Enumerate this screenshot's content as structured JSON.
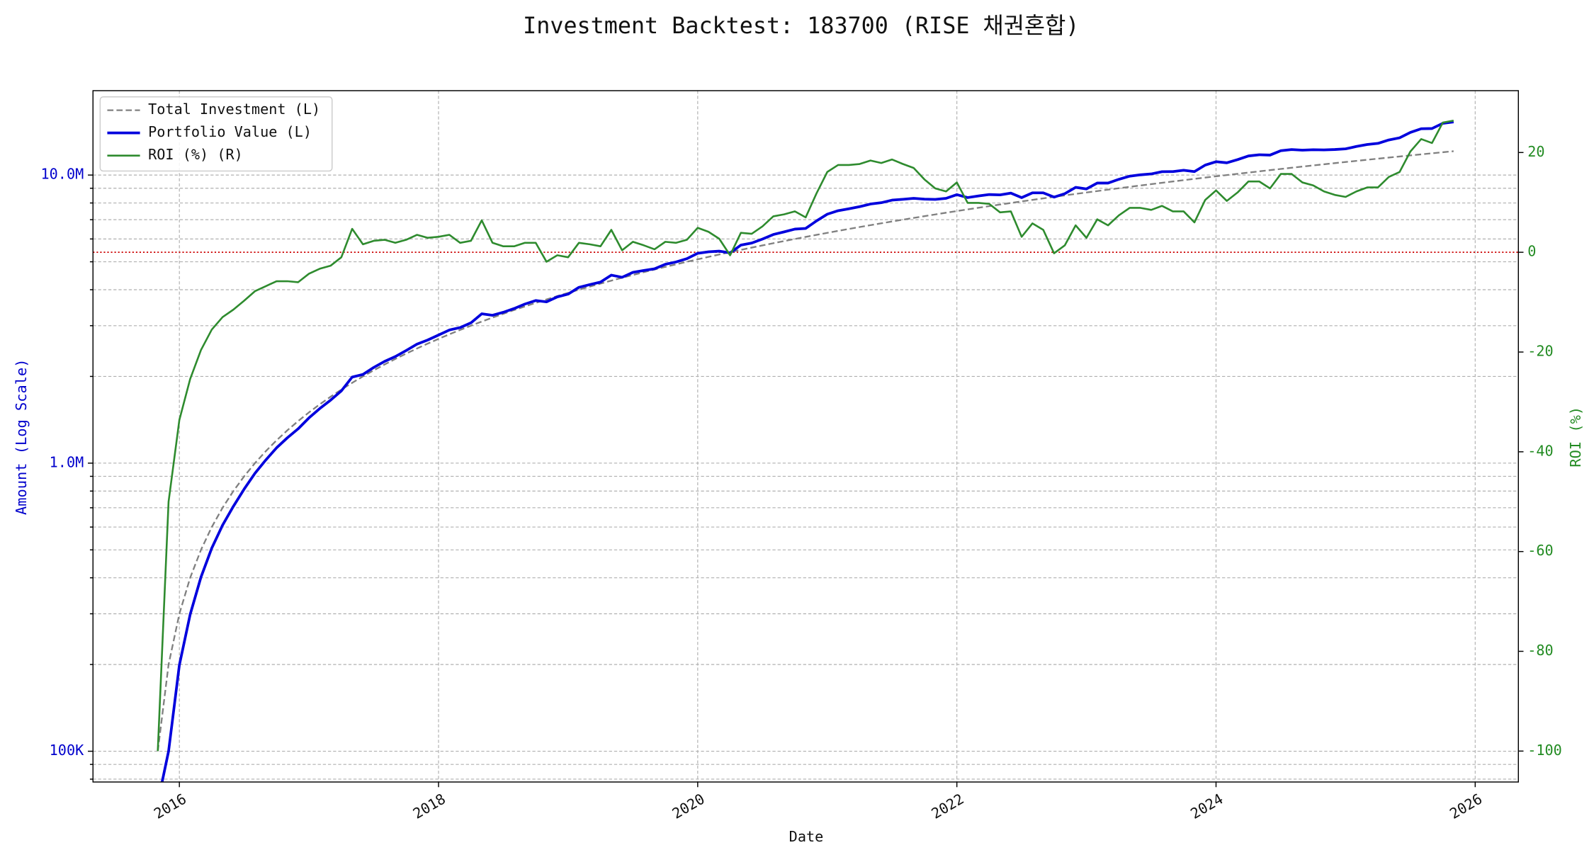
{
  "chart_data": {
    "type": "line",
    "title": "Investment Backtest: 183700 (RISE 채권혼합)",
    "xlabel": "Date",
    "ylabel": "Amount (Log Scale)",
    "y2label": "ROI (%)",
    "log_y": true,
    "grid": true,
    "legend": "upper left",
    "x": [
      "2015-11",
      "2015-12",
      "2016-01",
      "2016-02",
      "2016-03",
      "2016-04",
      "2016-05",
      "2016-06",
      "2016-07",
      "2016-08",
      "2016-09",
      "2016-10",
      "2016-11",
      "2016-12",
      "2017-01",
      "2017-02",
      "2017-03",
      "2017-04",
      "2017-05",
      "2017-06",
      "2017-07",
      "2017-08",
      "2017-09",
      "2017-10",
      "2017-11",
      "2017-12",
      "2018-01",
      "2018-02",
      "2018-03",
      "2018-04",
      "2018-05",
      "2018-06",
      "2018-07",
      "2018-08",
      "2018-09",
      "2018-10",
      "2018-11",
      "2018-12",
      "2019-01",
      "2019-02",
      "2019-03",
      "2019-04",
      "2019-05",
      "2019-06",
      "2019-07",
      "2019-08",
      "2019-09",
      "2019-10",
      "2019-11",
      "2019-12",
      "2020-01",
      "2020-02",
      "2020-03",
      "2020-04",
      "2020-05",
      "2020-06",
      "2020-07",
      "2020-08",
      "2020-09",
      "2020-10",
      "2020-11",
      "2020-12",
      "2021-01",
      "2021-02",
      "2021-03",
      "2021-04",
      "2021-05",
      "2021-06",
      "2021-07",
      "2021-08",
      "2021-09",
      "2021-10",
      "2021-11",
      "2021-12",
      "2022-01",
      "2022-02",
      "2022-03",
      "2022-04",
      "2022-05",
      "2022-06",
      "2022-07",
      "2022-08",
      "2022-09",
      "2022-10",
      "2022-11",
      "2022-12",
      "2023-01",
      "2023-02",
      "2023-03",
      "2023-04",
      "2023-05",
      "2023-06",
      "2023-07",
      "2023-08",
      "2023-09",
      "2023-10",
      "2023-11",
      "2023-12",
      "2024-01",
      "2024-02",
      "2024-03",
      "2024-04",
      "2024-05",
      "2024-06",
      "2024-07",
      "2024-08",
      "2024-09",
      "2024-10",
      "2024-11",
      "2024-12",
      "2025-01",
      "2025-02",
      "2025-03",
      "2025-04",
      "2025-05",
      "2025-06",
      "2025-07",
      "2025-08",
      "2025-09",
      "2025-10",
      "2025-11"
    ],
    "series": [
      {
        "name": "Total Investment (L)",
        "color": "#808080",
        "dash": true,
        "width": 1.6,
        "values": [
          100000,
          200000,
          300000,
          400000,
          500000,
          600000,
          700000,
          800000,
          900000,
          1000000,
          1100000,
          1200000,
          1300000,
          1400000,
          1500000,
          1600000,
          1700000,
          1800000,
          1900000,
          2000000,
          2100000,
          2200000,
          2300000,
          2400000,
          2500000,
          2600000,
          2700000,
          2800000,
          2900000,
          3000000,
          3100000,
          3200000,
          3300000,
          3400000,
          3500000,
          3600000,
          3700000,
          3800000,
          3900000,
          4000000,
          4100000,
          4200000,
          4300000,
          4400000,
          4500000,
          4600000,
          4700000,
          4800000,
          4900000,
          5000000,
          5100000,
          5200000,
          5300000,
          5400000,
          5500000,
          5600000,
          5700000,
          5800000,
          5900000,
          6000000,
          6100000,
          6200000,
          6300000,
          6400000,
          6500000,
          6600000,
          6700000,
          6800000,
          6900000,
          7000000,
          7100000,
          7200000,
          7300000,
          7400000,
          7500000,
          7600000,
          7700000,
          7800000,
          7900000,
          8000000,
          8100000,
          8200000,
          8300000,
          8400000,
          8500000,
          8600000,
          8700000,
          8800000,
          8900000,
          9000000,
          9100000,
          9200000,
          9300000,
          9400000,
          9500000,
          9600000,
          9700000,
          9800000,
          9900000,
          10000000,
          10100000,
          10200000,
          10300000,
          10400000,
          10500000,
          10600000,
          10700000,
          10800000,
          10900000,
          11000000,
          11100000,
          11200000,
          11300000,
          11400000,
          11500000,
          11600000,
          11700000,
          11800000,
          11900000,
          12000000,
          12100000
        ]
      },
      {
        "name": "Portfolio Value (L)",
        "color": "#0000dd",
        "width": 2.6,
        "values": [
          0,
          100000,
          199200,
          298400,
          402000,
          507000,
          609000,
          708000,
          812700,
          922000,
          1025200,
          1130400,
          1224600,
          1316000,
          1435500,
          1547200,
          1654100,
          1782000,
          1989300,
          2032000,
          2148300,
          2255000,
          2343700,
          2460000,
          2587500,
          2675400,
          2783700,
          2898000,
          2955100,
          3069000,
          3298400,
          3260800,
          3339600,
          3440800,
          3566500,
          3668400,
          3629700,
          3777200,
          3861000,
          4076000,
          4165600,
          4250400,
          4493500,
          4417600,
          4594500,
          4664400,
          4728200,
          4900800,
          4993100,
          5125000,
          5349900,
          5413200,
          5443100,
          5367600,
          5714500,
          5807200,
          5996400,
          6217600,
          6348400,
          6492000,
          6527000,
          6931600,
          7314300,
          7520000,
          7637500,
          7768200,
          7932800,
          8017200,
          8183400,
          8239000,
          8299900,
          8251200,
          8234400,
          8302800,
          8550000,
          8352400,
          8462300,
          8556600,
          8532000,
          8656000,
          8351100,
          8675600,
          8673500,
          8383200,
          8619000,
          9064400,
          8952300,
          9380800,
          9380600,
          9666000,
          9909900,
          10018800,
          10090500,
          10274200,
          10279000,
          10387200,
          10282000,
          10829000,
          11127600,
          11030000,
          11312000,
          11648400,
          11762600,
          11731200,
          12148500,
          12264200,
          12198000,
          12247200,
          12229800,
          12265000,
          12332100,
          12566400,
          12769000,
          12882000,
          13236500,
          13467600,
          14063400,
          14478600,
          14506100,
          15120000,
          15294400
        ]
      },
      {
        "name": "ROI (%) (R)",
        "color": "#2e8b2e",
        "axis": "y2",
        "width": 1.8,
        "values": [
          -100,
          -50,
          -33.6,
          -25.4,
          -19.6,
          -15.5,
          -13,
          -11.5,
          -9.7,
          -7.8,
          -6.8,
          -5.8,
          -5.8,
          -6,
          -4.3,
          -3.3,
          -2.7,
          -1,
          4.7,
          1.6,
          2.3,
          2.5,
          1.9,
          2.5,
          3.5,
          2.9,
          3.1,
          3.5,
          1.9,
          2.3,
          6.4,
          1.9,
          1.2,
          1.2,
          1.9,
          1.9,
          -1.9,
          -0.6,
          -1,
          1.9,
          1.6,
          1.2,
          4.5,
          0.4,
          2.1,
          1.4,
          0.6,
          2.1,
          1.9,
          2.5,
          4.9,
          4.1,
          2.7,
          -0.6,
          3.9,
          3.7,
          5.2,
          7.2,
          7.6,
          8.2,
          7,
          11.8,
          16.1,
          17.5,
          17.5,
          17.7,
          18.4,
          17.9,
          18.6,
          17.7,
          16.9,
          14.6,
          12.8,
          12.2,
          14,
          9.9,
          9.9,
          9.7,
          8,
          8.2,
          3.1,
          5.8,
          4.5,
          -0.2,
          1.4,
          5.4,
          2.9,
          6.6,
          5.4,
          7.4,
          8.9,
          8.9,
          8.5,
          9.3,
          8.2,
          8.2,
          6,
          10.5,
          12.4,
          10.3,
          12,
          14.2,
          14.2,
          12.8,
          15.7,
          15.7,
          14,
          13.4,
          12.2,
          11.5,
          11.1,
          12.2,
          13,
          13,
          15.1,
          16.1,
          20.2,
          22.7,
          21.9,
          26,
          26.4
        ]
      }
    ],
    "xlim": [
      "2015-05",
      "2026-05"
    ],
    "xticks": [
      {
        "value": "2016-01",
        "label": "2016"
      },
      {
        "value": "2018-01",
        "label": "2018"
      },
      {
        "value": "2020-01",
        "label": "2020"
      },
      {
        "value": "2022-01",
        "label": "2022"
      },
      {
        "value": "2024-01",
        "label": "2024"
      },
      {
        "value": "2026-01",
        "label": "2026"
      }
    ],
    "ylim": [
      78200,
      19630000
    ],
    "yticks": [
      {
        "value": 100000,
        "label": "100K"
      },
      {
        "value": 1000000,
        "label": "1.0M"
      },
      {
        "value": 10000000,
        "label": "10.0M"
      }
    ],
    "yminorticks": [
      80000,
      90000,
      200000,
      300000,
      400000,
      500000,
      600000,
      700000,
      800000,
      900000,
      2000000,
      3000000,
      4000000,
      5000000,
      6000000,
      7000000,
      8000000,
      9000000
    ],
    "y2lim": [
      -106.2,
      32.4
    ],
    "y2ticks": [
      -100,
      -80,
      -60,
      -40,
      -20,
      0,
      20
    ],
    "ylabel_color": "#0000cc",
    "y2label_color": "#228b22",
    "reference_line": {
      "value": 0,
      "axis": "y2",
      "color": "#cc0000"
    }
  }
}
